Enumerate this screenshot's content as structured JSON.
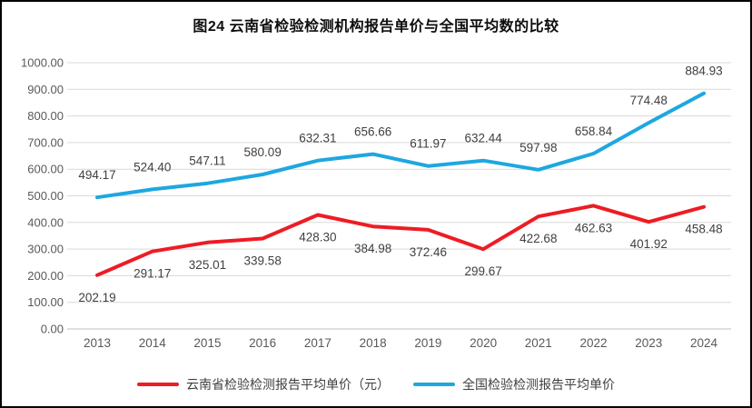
{
  "page": {
    "title": "图24 云南省检验检测机构报告单价与全国平均数的比较"
  },
  "chart_data": {
    "type": "line",
    "title": "图24 云南省检验检测机构报告单价与全国平均数的比较",
    "categories": [
      "2013",
      "2014",
      "2015",
      "2016",
      "2017",
      "2018",
      "2019",
      "2020",
      "2021",
      "2022",
      "2023",
      "2024"
    ],
    "series": [
      {
        "name": "云南省检验检测报告平均单价（元）",
        "color": "#ed1c24",
        "label_position": "below",
        "values": [
          202.19,
          291.17,
          325.01,
          339.58,
          428.3,
          384.98,
          372.46,
          299.67,
          422.68,
          462.63,
          401.92,
          458.48
        ]
      },
      {
        "name": "全国检验检测报告平均单价",
        "color": "#1ea7e0",
        "label_position": "above",
        "values": [
          494.17,
          524.4,
          547.11,
          580.09,
          632.31,
          656.66,
          611.97,
          632.44,
          597.98,
          658.84,
          774.48,
          884.93
        ]
      }
    ],
    "ylim": [
      0,
      1000
    ],
    "y_tick_step": 100,
    "y_tick_format": "two-decimals",
    "grid": "horizontal",
    "legend_position": "bottom",
    "colors": {
      "gridline": "#d9d9d9",
      "axis_line": "#bfbfbf",
      "tick_label": "#595959",
      "data_label": "#3f3f3f"
    }
  }
}
